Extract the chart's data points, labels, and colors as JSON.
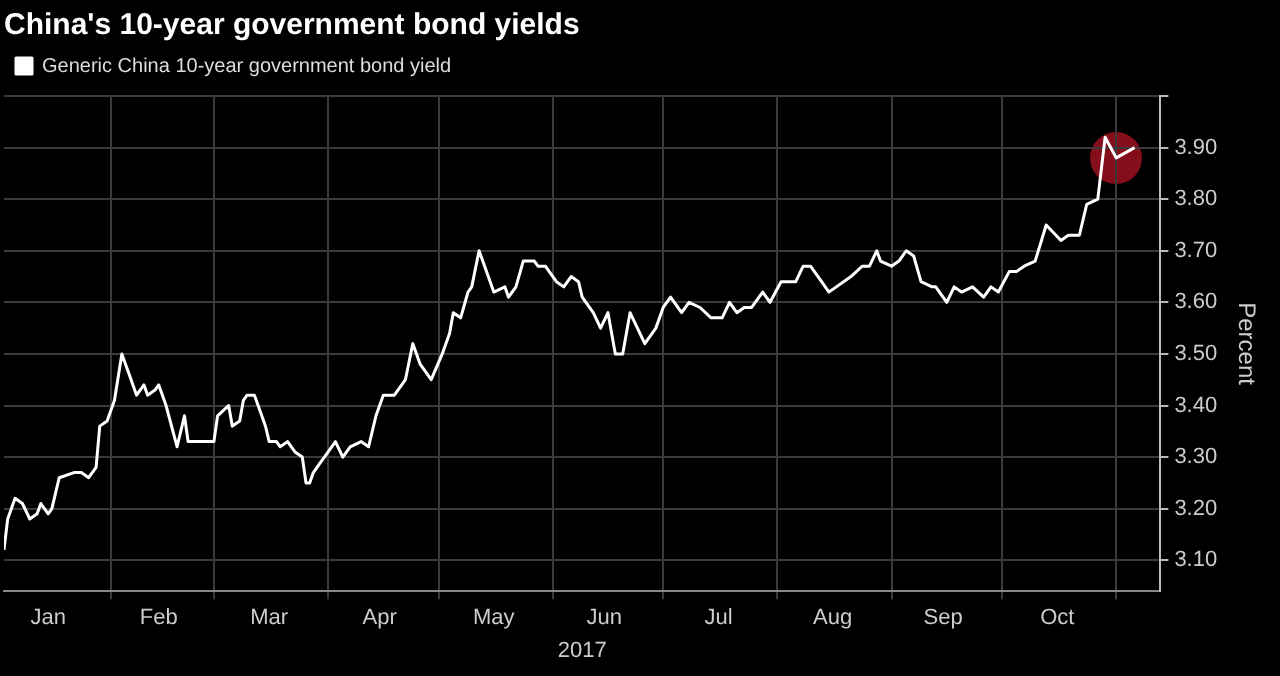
{
  "chart_data": {
    "type": "line",
    "title": "China's 10-year government bond yields",
    "xlabel": "2017",
    "ylabel": "Percent",
    "x": [
      "2017-01-03",
      "2017-01-04",
      "2017-01-06",
      "2017-01-08",
      "2017-01-10",
      "2017-01-12",
      "2017-01-13",
      "2017-01-15",
      "2017-01-16",
      "2017-01-18",
      "2017-01-22",
      "2017-01-24",
      "2017-01-26",
      "2017-01-28",
      "2017-01-29",
      "2017-01-31",
      "2017-02-02",
      "2017-02-04",
      "2017-02-06",
      "2017-02-08",
      "2017-02-10",
      "2017-02-11",
      "2017-02-13",
      "2017-02-14",
      "2017-02-16",
      "2017-02-19",
      "2017-02-21",
      "2017-02-22",
      "2017-02-25",
      "2017-03-01",
      "2017-03-02",
      "2017-03-05",
      "2017-03-06",
      "2017-03-08",
      "2017-03-09",
      "2017-03-10",
      "2017-03-12",
      "2017-03-14",
      "2017-03-15",
      "2017-03-16",
      "2017-03-18",
      "2017-03-19",
      "2017-03-21",
      "2017-03-23",
      "2017-03-25",
      "2017-03-26",
      "2017-03-27",
      "2017-03-28",
      "2017-03-30",
      "2017-03-31",
      "2017-04-03",
      "2017-04-05",
      "2017-04-07",
      "2017-04-10",
      "2017-04-12",
      "2017-04-14",
      "2017-04-16",
      "2017-04-19",
      "2017-04-22",
      "2017-04-24",
      "2017-04-26",
      "2017-04-29",
      "2017-05-02",
      "2017-05-04",
      "2017-05-05",
      "2017-05-07",
      "2017-05-09",
      "2017-05-10",
      "2017-05-12",
      "2017-05-13",
      "2017-05-16",
      "2017-05-19",
      "2017-05-20",
      "2017-05-22",
      "2017-05-24",
      "2017-05-27",
      "2017-05-28",
      "2017-05-30",
      "2017-06-02",
      "2017-06-04",
      "2017-06-06",
      "2017-06-08",
      "2017-06-09",
      "2017-06-12",
      "2017-06-14",
      "2017-06-16",
      "2017-06-18",
      "2017-06-20",
      "2017-06-22",
      "2017-06-26",
      "2017-06-29",
      "2017-07-01",
      "2017-07-03",
      "2017-07-06",
      "2017-07-08",
      "2017-07-11",
      "2017-07-14",
      "2017-07-17",
      "2017-07-19",
      "2017-07-21",
      "2017-07-23",
      "2017-07-25",
      "2017-07-28",
      "2017-07-30",
      "2017-08-02",
      "2017-08-04",
      "2017-08-06",
      "2017-08-08",
      "2017-08-10",
      "2017-08-13",
      "2017-08-15",
      "2017-08-17",
      "2017-08-21",
      "2017-08-24",
      "2017-08-26",
      "2017-08-28",
      "2017-08-29",
      "2017-09-01",
      "2017-09-03",
      "2017-09-05",
      "2017-09-07",
      "2017-09-09",
      "2017-09-12",
      "2017-09-13",
      "2017-09-16",
      "2017-09-18",
      "2017-09-20",
      "2017-09-23",
      "2017-09-26",
      "2017-09-28",
      "2017-09-30",
      "2017-10-03",
      "2017-10-05",
      "2017-10-07",
      "2017-10-10",
      "2017-10-13",
      "2017-10-17",
      "2017-10-19",
      "2017-10-22",
      "2017-10-24",
      "2017-10-27",
      "2017-10-29",
      "2017-11-01",
      "2017-11-06"
    ],
    "series": [
      {
        "name": "Generic China 10-year government bond yield",
        "color": "#ffffff",
        "values": [
          3.12,
          3.18,
          3.22,
          3.21,
          3.18,
          3.19,
          3.21,
          3.19,
          3.2,
          3.26,
          3.27,
          3.27,
          3.26,
          3.28,
          3.36,
          3.37,
          3.41,
          3.5,
          3.46,
          3.42,
          3.44,
          3.42,
          3.43,
          3.44,
          3.4,
          3.32,
          3.38,
          3.33,
          3.33,
          3.33,
          3.38,
          3.4,
          3.36,
          3.37,
          3.41,
          3.42,
          3.42,
          3.38,
          3.36,
          3.33,
          3.33,
          3.32,
          3.33,
          3.31,
          3.3,
          3.25,
          3.25,
          3.27,
          3.29,
          3.3,
          3.33,
          3.3,
          3.32,
          3.33,
          3.32,
          3.38,
          3.42,
          3.42,
          3.45,
          3.52,
          3.48,
          3.45,
          3.5,
          3.54,
          3.58,
          3.57,
          3.62,
          3.63,
          3.7,
          3.68,
          3.62,
          3.63,
          3.61,
          3.63,
          3.68,
          3.68,
          3.67,
          3.67,
          3.64,
          3.63,
          3.65,
          3.64,
          3.61,
          3.58,
          3.55,
          3.58,
          3.5,
          3.5,
          3.58,
          3.52,
          3.55,
          3.59,
          3.61,
          3.58,
          3.6,
          3.59,
          3.57,
          3.57,
          3.6,
          3.58,
          3.59,
          3.59,
          3.62,
          3.6,
          3.64,
          3.64,
          3.64,
          3.67,
          3.67,
          3.64,
          3.62,
          3.63,
          3.65,
          3.67,
          3.67,
          3.7,
          3.68,
          3.67,
          3.68,
          3.7,
          3.69,
          3.64,
          3.63,
          3.63,
          3.6,
          3.63,
          3.62,
          3.63,
          3.61,
          3.63,
          3.62,
          3.66,
          3.66,
          3.67,
          3.68,
          3.75,
          3.72,
          3.73,
          3.73,
          3.79,
          3.8,
          3.92,
          3.88,
          3.9
        ]
      }
    ],
    "xlim": [
      "2017-01-03",
      "2017-11-13"
    ],
    "xticks": [
      {
        "value": "2017-01-15",
        "label": "Jan"
      },
      {
        "value": "2017-02-01",
        "label": null
      },
      {
        "value": "2017-02-14",
        "label": "Feb"
      },
      {
        "value": "2017-03-01",
        "label": null
      },
      {
        "value": "2017-03-16",
        "label": "Mar"
      },
      {
        "value": "2017-04-01",
        "label": null
      },
      {
        "value": "2017-04-15",
        "label": "Apr"
      },
      {
        "value": "2017-05-01",
        "label": null
      },
      {
        "value": "2017-05-16",
        "label": "May"
      },
      {
        "value": "2017-06-01",
        "label": null
      },
      {
        "value": "2017-06-15",
        "label": "Jun"
      },
      {
        "value": "2017-07-01",
        "label": null
      },
      {
        "value": "2017-07-16",
        "label": "Jul"
      },
      {
        "value": "2017-08-01",
        "label": null
      },
      {
        "value": "2017-08-16",
        "label": "Aug"
      },
      {
        "value": "2017-09-01",
        "label": null
      },
      {
        "value": "2017-09-15",
        "label": "Sep"
      },
      {
        "value": "2017-10-01",
        "label": null
      },
      {
        "value": "2017-10-16",
        "label": "Oct"
      },
      {
        "value": "2017-11-01",
        "label": null
      }
    ],
    "ylim": [
      3.04,
      4.0
    ],
    "yticks": [
      {
        "value": 3.1,
        "label": "3.10"
      },
      {
        "value": 3.2,
        "label": "3.20"
      },
      {
        "value": 3.3,
        "label": "3.30"
      },
      {
        "value": 3.4,
        "label": "3.40"
      },
      {
        "value": 3.5,
        "label": "3.50"
      },
      {
        "value": 3.6,
        "label": "3.60"
      },
      {
        "value": 3.7,
        "label": "3.70"
      },
      {
        "value": 3.8,
        "label": "3.80"
      },
      {
        "value": 3.9,
        "label": "3.90"
      },
      {
        "value": 4.0,
        "label": null
      }
    ],
    "grid": true,
    "legend": "top left",
    "marker": "none",
    "line_style": "solid"
  }
}
